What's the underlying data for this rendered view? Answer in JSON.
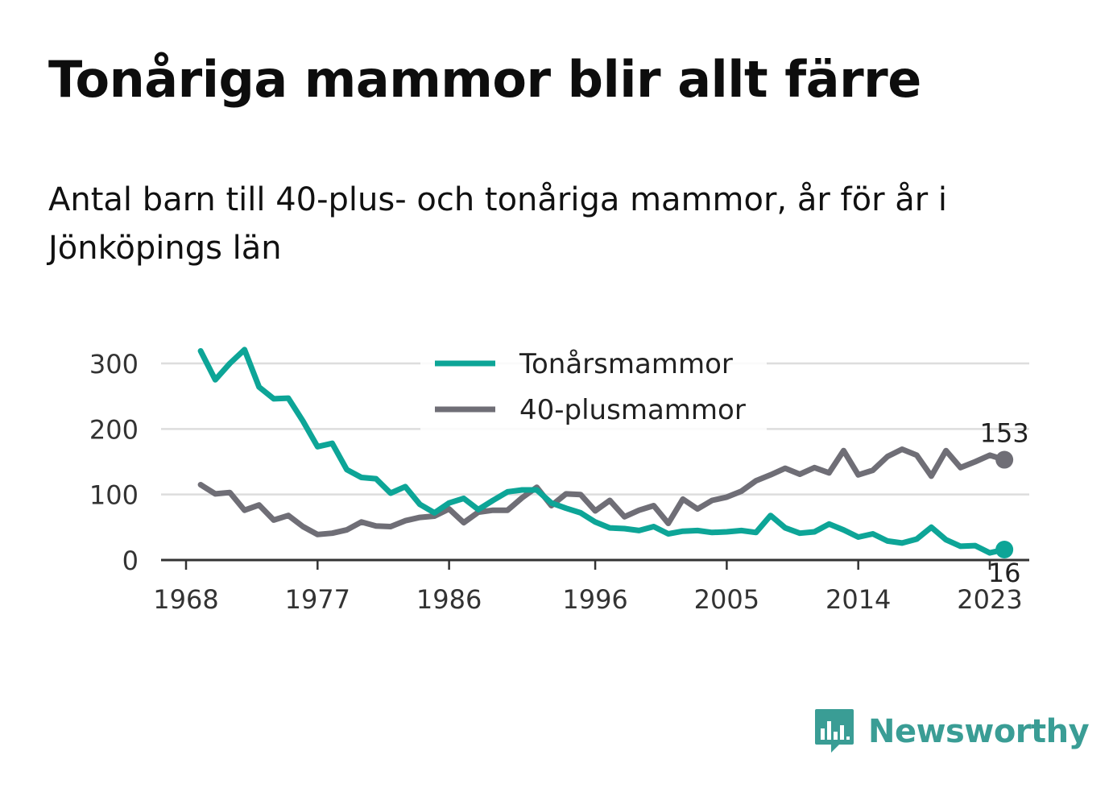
{
  "title": "Tonåriga mammor blir allt färre",
  "subtitle": "Antal barn till 40-plus- och tonåriga mammor, år för år i Jönköpings län",
  "brand": "Newsworthy",
  "colors": {
    "teal": "#0da597",
    "gray": "#6f6e76",
    "grid": "#dddddd",
    "brand": "#3a9d95"
  },
  "chart_data": {
    "type": "line",
    "title": "Tonåriga mammor blir allt färre",
    "subtitle": "Antal barn till 40-plus- och tonåriga mammor, år för år i Jönköpings län",
    "xlabel": "",
    "ylabel": "",
    "x_ticks": [
      "1968",
      "1977",
      "1986",
      "1996",
      "2005",
      "2014",
      "2023"
    ],
    "y_ticks": [
      "0",
      "100",
      "200",
      "300"
    ],
    "xlim": [
      1968,
      2023
    ],
    "ylim": [
      0,
      300
    ],
    "grid": true,
    "legend": "top-center",
    "x": [
      1969,
      1970,
      1971,
      1972,
      1973,
      1974,
      1975,
      1976,
      1977,
      1978,
      1979,
      1980,
      1981,
      1982,
      1983,
      1984,
      1985,
      1986,
      1987,
      1988,
      1989,
      1990,
      1991,
      1992,
      1993,
      1994,
      1995,
      1996,
      1997,
      1998,
      1999,
      2000,
      2001,
      2002,
      2003,
      2004,
      2005,
      2006,
      2007,
      2008,
      2009,
      2010,
      2011,
      2012,
      2013,
      2014,
      2015,
      2016,
      2017,
      2018,
      2019,
      2020,
      2021,
      2022,
      2023,
      2024
    ],
    "series": [
      {
        "name": "Tonårsmammor",
        "color": "#0da597",
        "values": [
          319,
          275,
          300,
          321,
          264,
          246,
          247,
          212,
          173,
          178,
          138,
          126,
          124,
          102,
          112,
          85,
          72,
          87,
          94,
          77,
          91,
          104,
          107,
          107,
          87,
          79,
          72,
          58,
          49,
          48,
          45,
          51,
          40,
          44,
          45,
          42,
          43,
          45,
          42,
          68,
          49,
          41,
          43,
          55,
          46,
          35,
          40,
          29,
          26,
          32,
          50,
          31,
          21,
          22,
          11,
          16
        ],
        "end_label": "16"
      },
      {
        "name": "40-plusmammor",
        "color": "#6f6e76",
        "values": [
          115,
          101,
          103,
          76,
          84,
          61,
          68,
          51,
          39,
          41,
          46,
          58,
          52,
          51,
          60,
          65,
          67,
          78,
          57,
          73,
          76,
          76,
          95,
          111,
          83,
          101,
          100,
          75,
          91,
          66,
          76,
          83,
          56,
          93,
          78,
          91,
          96,
          105,
          121,
          130,
          140,
          131,
          141,
          133,
          167,
          130,
          137,
          158,
          169,
          160,
          128,
          167,
          141,
          150,
          160,
          153
        ],
        "end_label": "153"
      }
    ]
  }
}
